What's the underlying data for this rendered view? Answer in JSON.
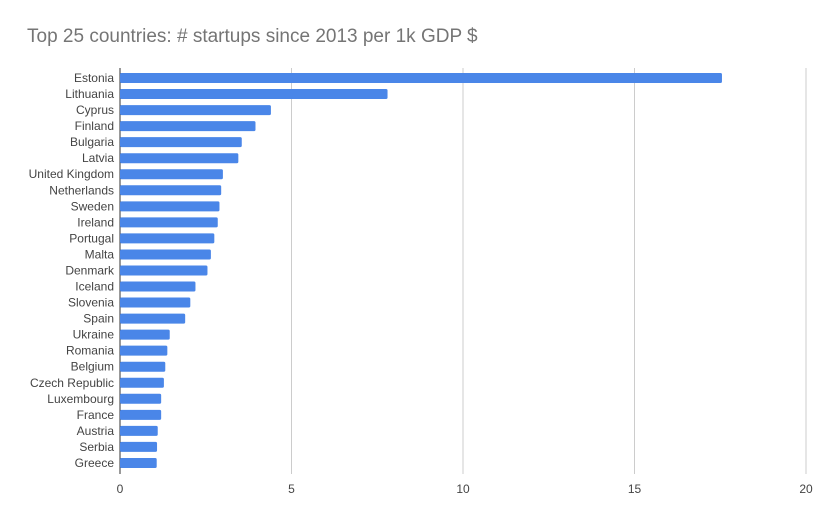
{
  "chart_data": {
    "type": "bar",
    "orientation": "horizontal",
    "title": "Top 25 countries: # startups since 2013 per 1k GDP $",
    "xlabel": "",
    "ylabel": "",
    "categories": [
      "Estonia",
      "Lithuania",
      "Cyprus",
      "Finland",
      "Bulgaria",
      "Latvia",
      "United Kingdom",
      "Netherlands",
      "Sweden",
      "Ireland",
      "Portugal",
      "Malta",
      "Denmark",
      "Iceland",
      "Slovenia",
      "Spain",
      "Ukraine",
      "Romania",
      "Belgium",
      "Czech Republic",
      "Luxembourg",
      "France",
      "Austria",
      "Serbia",
      "Greece"
    ],
    "values": [
      17.55,
      7.8,
      4.4,
      3.95,
      3.55,
      3.45,
      3.0,
      2.95,
      2.9,
      2.85,
      2.75,
      2.65,
      2.55,
      2.2,
      2.05,
      1.9,
      1.45,
      1.38,
      1.32,
      1.28,
      1.2,
      1.2,
      1.1,
      1.08,
      1.07
    ],
    "xlim": [
      0,
      20
    ],
    "xticks": [
      0,
      5,
      10,
      15,
      20
    ],
    "grid": true,
    "legend": "none",
    "bar_color": "#4a86e8"
  }
}
